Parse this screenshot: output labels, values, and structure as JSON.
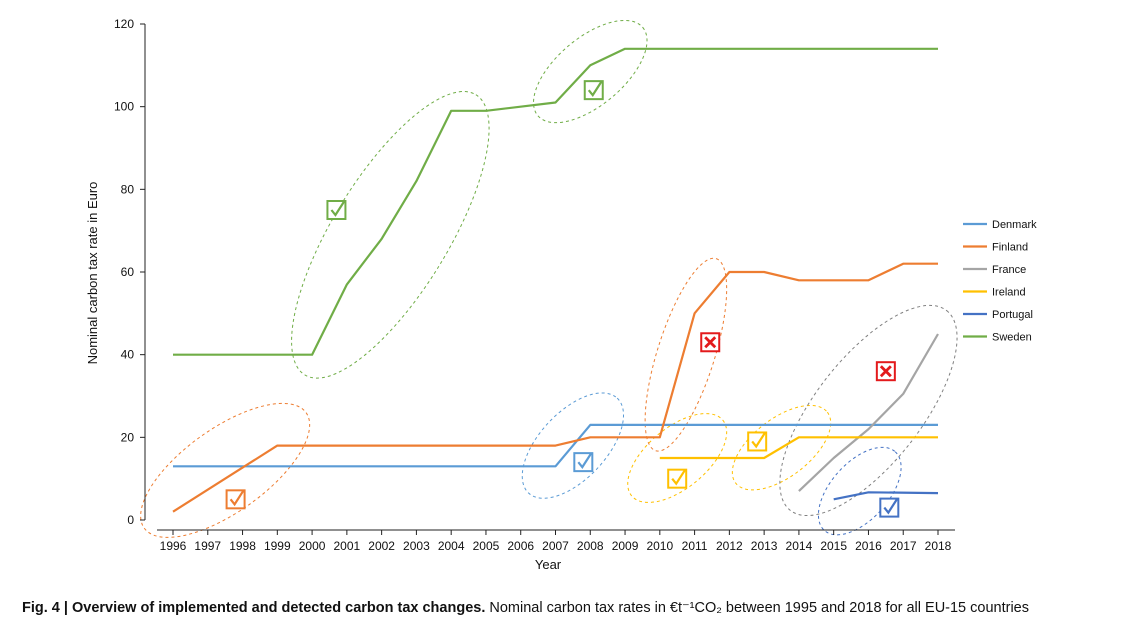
{
  "chart_data": {
    "type": "line",
    "xlabel": "Year",
    "ylabel": "Nominal carbon tax rate in Euro",
    "ylim": [
      0,
      120
    ],
    "yticks": [
      0,
      20,
      40,
      60,
      80,
      100,
      120
    ],
    "xlim": [
      1996,
      2018
    ],
    "categories": [
      "1996",
      "1997",
      "1998",
      "1999",
      "2000",
      "2001",
      "2002",
      "2003",
      "2004",
      "2005",
      "2006",
      "2007",
      "2008",
      "2009",
      "2010",
      "2011",
      "2012",
      "2013",
      "2014",
      "2015",
      "2016",
      "2017",
      "2018"
    ],
    "grid": false,
    "legend_position": "right",
    "series": [
      {
        "name": "Denmark",
        "color": "#5b9bd5",
        "points": [
          [
            1996,
            13
          ],
          [
            2007,
            13
          ],
          [
            2008,
            23
          ],
          [
            2018,
            23
          ]
        ]
      },
      {
        "name": "Finland",
        "color": "#ed7d31",
        "points": [
          [
            1996,
            2
          ],
          [
            1999,
            18
          ],
          [
            2007,
            18
          ],
          [
            2008,
            20
          ],
          [
            2010,
            20
          ],
          [
            2011,
            50
          ],
          [
            2012,
            60
          ],
          [
            2013,
            60
          ],
          [
            2014,
            58
          ],
          [
            2016,
            58
          ],
          [
            2017,
            62
          ],
          [
            2018,
            62
          ]
        ]
      },
      {
        "name": "France",
        "color": "#a5a5a5",
        "points": [
          [
            2014,
            7
          ],
          [
            2015,
            15
          ],
          [
            2016,
            22
          ],
          [
            2017,
            30.5
          ],
          [
            2018,
            45
          ]
        ]
      },
      {
        "name": "Ireland",
        "color": "#ffc000",
        "points": [
          [
            2010,
            15
          ],
          [
            2013,
            15
          ],
          [
            2014,
            20
          ],
          [
            2018,
            20
          ]
        ]
      },
      {
        "name": "Portugal",
        "color": "#4472c4",
        "points": [
          [
            2015,
            5
          ],
          [
            2016,
            6.7
          ],
          [
            2018,
            6.5
          ]
        ]
      },
      {
        "name": "Sweden",
        "color": "#70ad47",
        "points": [
          [
            1996,
            40
          ],
          [
            2000,
            40
          ],
          [
            2001,
            57
          ],
          [
            2002,
            68
          ],
          [
            2003,
            82
          ],
          [
            2004,
            99
          ],
          [
            2005,
            99
          ],
          [
            2007,
            101
          ],
          [
            2008,
            110
          ],
          [
            2009,
            114
          ],
          [
            2018,
            114
          ]
        ]
      }
    ],
    "annotations": [
      {
        "kind": "ellipse",
        "color": "#70ad47",
        "x_range": [
          2000,
          2004.5
        ],
        "y_range": [
          38,
          100
        ]
      },
      {
        "kind": "ellipse",
        "color": "#70ad47",
        "x_range": [
          2006.8,
          2009.2
        ],
        "y_range": [
          100,
          117
        ]
      },
      {
        "kind": "ellipse",
        "color": "#ed7d31",
        "x_range": [
          1995.5,
          1999.5
        ],
        "y_range": [
          0,
          24
        ]
      },
      {
        "kind": "ellipse",
        "color": "#5b9bd5",
        "x_range": [
          2006.5,
          2008.5
        ],
        "y_range": [
          9,
          27
        ]
      },
      {
        "kind": "ellipse",
        "color": "#ed7d31",
        "x_range": [
          2010,
          2011.5
        ],
        "y_range": [
          20,
          60
        ]
      },
      {
        "kind": "ellipse",
        "color": "#ffc000",
        "x_range": [
          2009.5,
          2011.5
        ],
        "y_range": [
          8,
          22
        ]
      },
      {
        "kind": "ellipse",
        "color": "#ffc000",
        "x_range": [
          2012.5,
          2014.5
        ],
        "y_range": [
          11,
          24
        ]
      },
      {
        "kind": "ellipse",
        "color": "#808080",
        "x_range": [
          2014,
          2018
        ],
        "y_range": [
          5,
          48
        ]
      },
      {
        "kind": "ellipse",
        "color": "#4472c4",
        "x_range": [
          2015,
          2016.5
        ],
        "y_range": [
          0,
          14
        ]
      },
      {
        "kind": "check",
        "color": "#70ad47",
        "x": 2000.7,
        "y": 75
      },
      {
        "kind": "check",
        "color": "#70ad47",
        "x": 2008.1,
        "y": 104
      },
      {
        "kind": "check",
        "color": "#ed7d31",
        "x": 1997.8,
        "y": 5
      },
      {
        "kind": "check",
        "color": "#5b9bd5",
        "x": 2007.8,
        "y": 14
      },
      {
        "kind": "check",
        "color": "#ffc000",
        "x": 2010.5,
        "y": 10
      },
      {
        "kind": "check",
        "color": "#ffc000",
        "x": 2012.8,
        "y": 19
      },
      {
        "kind": "check",
        "color": "#4472c4",
        "x": 2016.6,
        "y": 3
      },
      {
        "kind": "cross",
        "color": "#e31a1c",
        "x": 2011.45,
        "y": 43
      },
      {
        "kind": "cross",
        "color": "#e31a1c",
        "x": 2016.5,
        "y": 36
      }
    ]
  },
  "caption": {
    "bold": "Fig. 4 | Overview of implemented and detected carbon tax changes.",
    "text": " Nominal carbon tax rates in €t⁻¹CO₂ between 1995 and 2018 for all EU-15 countries"
  }
}
